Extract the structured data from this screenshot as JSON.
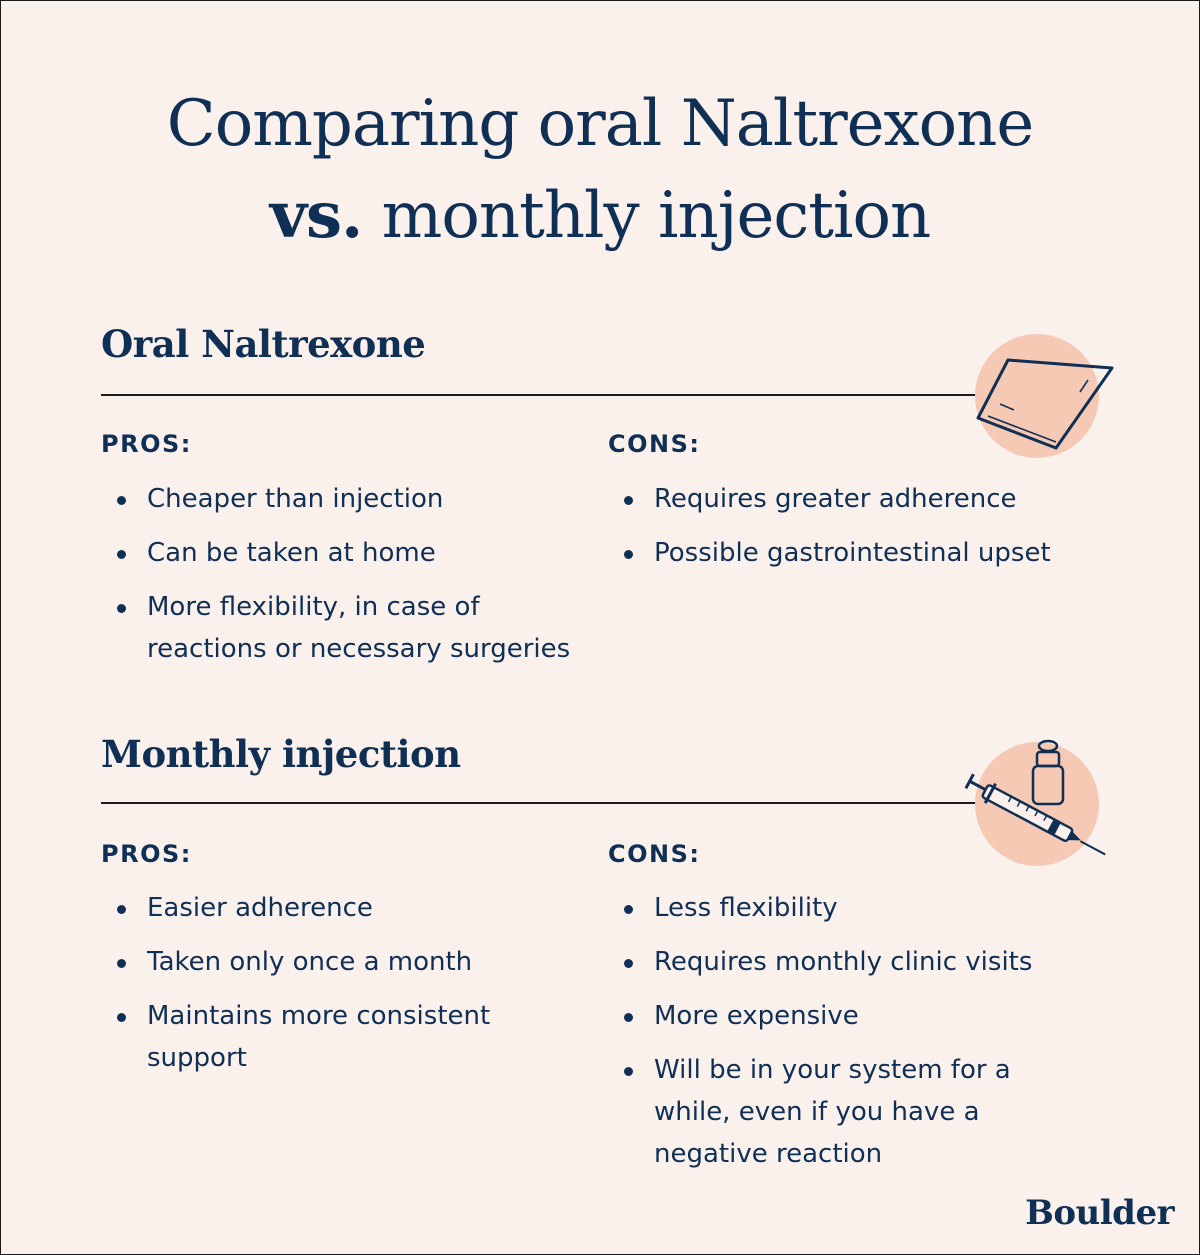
{
  "title": {
    "line1": "Comparing oral Naltrexone",
    "vs": "vs.",
    "line2_rest": " monthly injection"
  },
  "sections": [
    {
      "heading": "Oral Naltrexone",
      "icon": "pill-packet-icon",
      "pros_label": "PROS:",
      "cons_label": "CONS:",
      "pros": [
        "Cheaper than injection",
        "Can be taken at home",
        "More flexibility, in case of reactions or necessary surgeries"
      ],
      "cons": [
        "Requires greater adherence",
        "Possible gastrointestinal upset"
      ]
    },
    {
      "heading": "Monthly injection",
      "icon": "syringe-vial-icon",
      "pros_label": "PROS:",
      "cons_label": "CONS:",
      "pros": [
        "Easier adherence",
        "Taken only once a month",
        "Maintains more consistent support"
      ],
      "cons": [
        "Less flexibility",
        "Requires monthly clinic visits",
        "More expensive",
        "Will be in your system for a while, even if you have a negative reaction"
      ]
    }
  ],
  "brand": "Boulder",
  "colors": {
    "background": "#fbf1ec",
    "text": "#0f2f55",
    "icon_circle": "#f6c9b4"
  }
}
